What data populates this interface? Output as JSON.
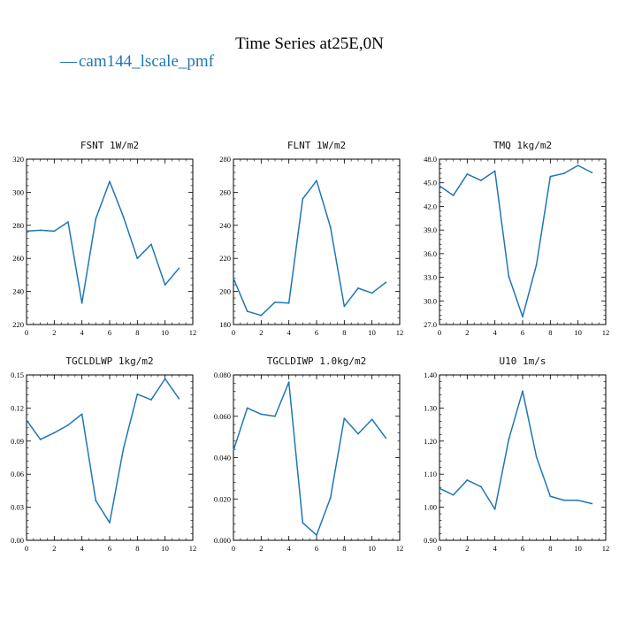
{
  "figure": {
    "title": "Time Series at25E,0N",
    "legend_label": "cam144_lscale_pmf",
    "legend_marker": "—",
    "line_color": "#1f77b4"
  },
  "chart_data": [
    {
      "type": "line",
      "title": "FSNT   1W/m2",
      "x": [
        0,
        1,
        2,
        3,
        4,
        5,
        6,
        7,
        8,
        9,
        10,
        11
      ],
      "series": [
        {
          "name": "cam144_lscale_pmf",
          "values": [
            276.5,
            277,
            276.5,
            282,
            233,
            284,
            306.5,
            285,
            260,
            268.5,
            244,
            254
          ]
        }
      ],
      "xlim": [
        0,
        12
      ],
      "ylim": [
        220,
        320
      ],
      "xticks": [
        0,
        2,
        4,
        6,
        8,
        10,
        12
      ],
      "yticks": [
        "220",
        "240",
        "260",
        "280",
        "300",
        "320"
      ]
    },
    {
      "type": "line",
      "title": "FLNT   1W/m2",
      "x": [
        0,
        1,
        2,
        3,
        4,
        5,
        6,
        7,
        8,
        9,
        10,
        11
      ],
      "series": [
        {
          "name": "cam144_lscale_pmf",
          "values": [
            208,
            188,
            185.5,
            193.5,
            193,
            256,
            267,
            239,
            191,
            202,
            199,
            205.5
          ]
        }
      ],
      "xlim": [
        0,
        12
      ],
      "ylim": [
        180,
        280
      ],
      "xticks": [
        0,
        2,
        4,
        6,
        8,
        10,
        12
      ],
      "yticks": [
        "180",
        "200",
        "220",
        "240",
        "260",
        "280"
      ]
    },
    {
      "type": "line",
      "title": "TMQ   1kg/m2",
      "x": [
        0,
        1,
        2,
        3,
        4,
        5,
        6,
        7,
        8,
        9,
        10,
        11
      ],
      "series": [
        {
          "name": "cam144_lscale_pmf",
          "values": [
            44.6,
            43.4,
            46.1,
            45.3,
            46.5,
            33.1,
            28.0,
            34.6,
            45.8,
            46.2,
            47.2,
            46.3
          ]
        }
      ],
      "xlim": [
        0,
        12
      ],
      "ylim": [
        27,
        48
      ],
      "xticks": [
        0,
        2,
        4,
        6,
        8,
        10,
        12
      ],
      "yticks": [
        "27.0",
        "30.0",
        "33.0",
        "36.0",
        "39.0",
        "42.0",
        "45.0",
        "48.0"
      ]
    },
    {
      "type": "line",
      "title": "TGCLDLWP   1kg/m2",
      "x": [
        0,
        1,
        2,
        3,
        4,
        5,
        6,
        7,
        8,
        9,
        10,
        11
      ],
      "series": [
        {
          "name": "cam144_lscale_pmf",
          "values": [
            0.109,
            0.0915,
            0.0975,
            0.1045,
            0.1145,
            0.036,
            0.016,
            0.0835,
            0.1325,
            0.1275,
            0.1465,
            0.1285
          ]
        }
      ],
      "xlim": [
        0,
        12
      ],
      "ylim": [
        0,
        0.15
      ],
      "xticks": [
        0,
        2,
        4,
        6,
        8,
        10,
        12
      ],
      "yticks": [
        "0.00",
        "0.03",
        "0.06",
        "0.09",
        "0.12",
        "0.15"
      ]
    },
    {
      "type": "line",
      "title": "TGCLDIWP   1.0kg/m2",
      "x": [
        0,
        1,
        2,
        3,
        4,
        5,
        6,
        7,
        8,
        9,
        10,
        11
      ],
      "series": [
        {
          "name": "cam144_lscale_pmf",
          "values": [
            0.0435,
            0.064,
            0.061,
            0.06,
            0.0765,
            0.0085,
            0.0025,
            0.0205,
            0.059,
            0.0515,
            0.0585,
            0.0495
          ]
        }
      ],
      "xlim": [
        0,
        12
      ],
      "ylim": [
        0,
        0.08
      ],
      "xticks": [
        0,
        2,
        4,
        6,
        8,
        10,
        12
      ],
      "yticks": [
        "0.000",
        "0.020",
        "0.040",
        "0.060",
        "0.080"
      ]
    },
    {
      "type": "line",
      "title": "U10   1m/s",
      "x": [
        0,
        1,
        2,
        3,
        4,
        5,
        6,
        7,
        8,
        9,
        10,
        11
      ],
      "series": [
        {
          "name": "cam144_lscale_pmf",
          "values": [
            1.057,
            1.037,
            1.082,
            1.062,
            0.994,
            1.205,
            1.351,
            1.152,
            1.033,
            1.021,
            1.021,
            1.011
          ]
        }
      ],
      "xlim": [
        0,
        12
      ],
      "ylim": [
        0.9,
        1.4
      ],
      "xticks": [
        0,
        2,
        4,
        6,
        8,
        10,
        12
      ],
      "yticks": [
        "0.90",
        "1.00",
        "1.10",
        "1.20",
        "1.30",
        "1.40"
      ]
    }
  ]
}
